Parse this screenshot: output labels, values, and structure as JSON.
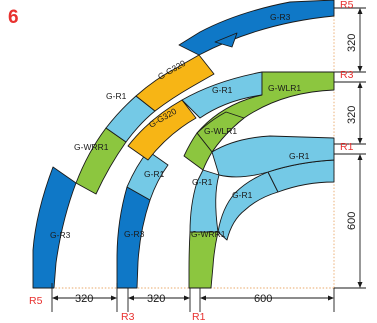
{
  "figure_number": "6",
  "colors": {
    "blue": "#0f78c7",
    "light_blue": "#74c9e6",
    "green": "#8cc63f",
    "orange": "#f7b515",
    "red": "#e8312f",
    "dim_orange": "#e9a86a"
  },
  "segments": {
    "g_r3_outer_bottom": "G-R3",
    "g_wrr1_outer": "G-WRR1",
    "g_r1_outer": "G-R1",
    "g_g320_outer": "G-G320",
    "g_r3_outer_top": "G-R3",
    "g_r3_middle_bottom": "G-R3",
    "g_r1_middle_a": "G-R1",
    "g_wlr1_middle": "G-WLR1",
    "g_g320_middle": "G-G320",
    "g_r1_middle_b": "G-R1",
    "g_wlr1_top": "G-WLR1",
    "g_wrr1_inner": "G-WRR1",
    "g_r1_inner_a": "G-R1",
    "g_r1_inner_b": "G-R1",
    "g_r1_inner_c": "G-R1"
  },
  "dimensions": {
    "bottom_320_left": "320",
    "bottom_320_right": "320",
    "bottom_600": "600",
    "right_320_top": "320",
    "right_320_mid": "320",
    "right_600": "600"
  },
  "radius_labels": {
    "bottom_r5": "R5",
    "bottom_r3": "R3",
    "bottom_r1": "R1",
    "right_r5": "R5",
    "right_r3": "R3",
    "right_r1": "R1"
  }
}
